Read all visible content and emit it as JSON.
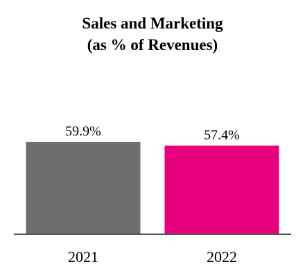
{
  "chart_data": {
    "type": "bar",
    "title": "Sales and Marketing",
    "subtitle": "(as % of Revenues)",
    "categories": [
      "2021",
      "2022"
    ],
    "values": [
      59.9,
      57.4
    ],
    "value_labels": [
      "59.9%",
      "57.4%"
    ],
    "colors": [
      "#6e6e6e",
      "#e6007e"
    ],
    "axis_color": "#555555",
    "ylim": [
      0,
      100
    ],
    "grid": false,
    "legend": "none"
  }
}
